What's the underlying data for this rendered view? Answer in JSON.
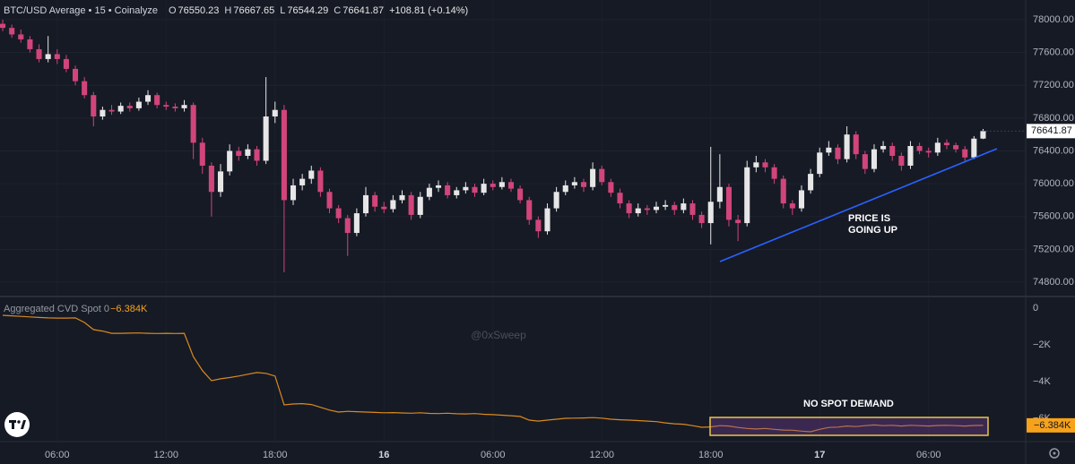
{
  "header": {
    "title": "BTC/USD Average • 15 • Coinalyze",
    "ohlc_labels": [
      "O",
      "H",
      "L",
      "C"
    ],
    "change": "+108.81 (+0.14%)"
  },
  "annotations": {
    "price_line1": "PRICE IS",
    "price_line2": "GOING UP",
    "cvd_note": "NO SPOT DEMAND",
    "watermark": "@0xSweep"
  },
  "chart_data": [
    {
      "type": "candlestick",
      "up_color": "#e6e6e6",
      "down_color": "#d1457b",
      "xlim": [
        -0.3,
        112.3
      ],
      "xticks": [
        {
          "value": 6,
          "label": "06:00"
        },
        {
          "value": 18,
          "label": "12:00"
        },
        {
          "value": 30,
          "label": "18:00"
        },
        {
          "value": 42,
          "label": "16"
        },
        {
          "value": 54,
          "label": "06:00"
        },
        {
          "value": 66,
          "label": "12:00"
        },
        {
          "value": 78,
          "label": "18:00"
        },
        {
          "value": 90,
          "label": "17"
        },
        {
          "value": 102,
          "label": "06:00"
        }
      ],
      "ylim": [
        74636,
        78240
      ],
      "yticks": [
        {
          "value": 78000,
          "label": "78000.00"
        },
        {
          "value": 77600,
          "label": "77600.00"
        },
        {
          "value": 77200,
          "label": "77200.00"
        },
        {
          "value": 76800,
          "label": "76800.00"
        },
        {
          "value": 76400,
          "label": "76400.00"
        },
        {
          "value": 76000,
          "label": "76000.00"
        },
        {
          "value": 75600,
          "label": "75600.00"
        },
        {
          "value": 75200,
          "label": "75200.00"
        },
        {
          "value": 74800,
          "label": "74800.00"
        }
      ],
      "grid": true,
      "ohlc": [
        [
          77950,
          78000,
          77860,
          77900
        ],
        [
          77900,
          77940,
          77780,
          77820
        ],
        [
          77820,
          77880,
          77720,
          77760
        ],
        [
          77760,
          77800,
          77600,
          77640
        ],
        [
          77640,
          77700,
          77480,
          77520
        ],
        [
          77520,
          77800,
          77480,
          77580
        ],
        [
          77580,
          77640,
          77460,
          77520
        ],
        [
          77520,
          77570,
          77360,
          77400
        ],
        [
          77400,
          77440,
          77200,
          77250
        ],
        [
          77250,
          77300,
          77040,
          77080
        ],
        [
          77080,
          77120,
          76700,
          76820
        ],
        [
          76820,
          76940,
          76780,
          76900
        ],
        [
          76900,
          76960,
          76840,
          76880
        ],
        [
          76880,
          76990,
          76850,
          76950
        ],
        [
          76950,
          76990,
          76880,
          76920
        ],
        [
          76920,
          77050,
          76890,
          77000
        ],
        [
          77000,
          77140,
          76960,
          77080
        ],
        [
          77080,
          77110,
          76920,
          76960
        ],
        [
          76960,
          77000,
          76900,
          76940
        ],
        [
          76940,
          76980,
          76880,
          76920
        ],
        [
          76920,
          77020,
          76880,
          76960
        ],
        [
          76960,
          76990,
          76300,
          76500
        ],
        [
          76500,
          76560,
          76120,
          76220
        ],
        [
          76220,
          76260,
          75600,
          75900
        ],
        [
          75900,
          76240,
          75840,
          76150
        ],
        [
          76150,
          76480,
          76100,
          76400
        ],
        [
          76400,
          76450,
          76280,
          76340
        ],
        [
          76340,
          76480,
          76300,
          76420
        ],
        [
          76420,
          76460,
          76220,
          76280
        ],
        [
          76280,
          77300,
          76240,
          76820
        ],
        [
          76820,
          77000,
          76740,
          76900
        ],
        [
          76900,
          76960,
          74920,
          75800
        ],
        [
          75800,
          76060,
          75740,
          75980
        ],
        [
          75980,
          76120,
          75920,
          76060
        ],
        [
          76060,
          76220,
          76000,
          76160
        ],
        [
          76160,
          76200,
          75840,
          75900
        ],
        [
          75900,
          75940,
          75640,
          75700
        ],
        [
          75700,
          75740,
          75520,
          75580
        ],
        [
          75580,
          75620,
          75120,
          75400
        ],
        [
          75400,
          75700,
          75360,
          75640
        ],
        [
          75640,
          75960,
          75600,
          75860
        ],
        [
          75860,
          75900,
          75660,
          75720
        ],
        [
          75720,
          75780,
          75640,
          75690
        ],
        [
          75690,
          75860,
          75650,
          75800
        ],
        [
          75800,
          75920,
          75760,
          75860
        ],
        [
          75860,
          75900,
          75560,
          75620
        ],
        [
          75620,
          75900,
          75580,
          75840
        ],
        [
          75840,
          76000,
          75800,
          75950
        ],
        [
          75950,
          76040,
          75900,
          75980
        ],
        [
          75980,
          76020,
          75820,
          75860
        ],
        [
          75860,
          75960,
          75820,
          75920
        ],
        [
          75920,
          76020,
          75880,
          75960
        ],
        [
          75960,
          76000,
          75840,
          75890
        ],
        [
          75890,
          76060,
          75860,
          76000
        ],
        [
          76000,
          76040,
          75920,
          75960
        ],
        [
          75960,
          76080,
          75930,
          76020
        ],
        [
          76020,
          76060,
          75900,
          75940
        ],
        [
          75940,
          75980,
          75760,
          75800
        ],
        [
          75800,
          75840,
          75500,
          75560
        ],
        [
          75560,
          75600,
          75340,
          75420
        ],
        [
          75420,
          75760,
          75380,
          75700
        ],
        [
          75700,
          75960,
          75660,
          75900
        ],
        [
          75900,
          76040,
          75860,
          75980
        ],
        [
          75980,
          76080,
          75940,
          76020
        ],
        [
          76020,
          76060,
          75900,
          75960
        ],
        [
          75960,
          76260,
          75920,
          76180
        ],
        [
          76180,
          76220,
          75980,
          76020
        ],
        [
          76020,
          76060,
          75840,
          75890
        ],
        [
          75890,
          75940,
          75700,
          75760
        ],
        [
          75760,
          75800,
          75580,
          75640
        ],
        [
          75640,
          75760,
          75600,
          75700
        ],
        [
          75700,
          75740,
          75620,
          75680
        ],
        [
          75680,
          75780,
          75640,
          75720
        ],
        [
          75720,
          75800,
          75680,
          75740
        ],
        [
          75740,
          75780,
          75620,
          75680
        ],
        [
          75680,
          75820,
          75640,
          75760
        ],
        [
          75760,
          75800,
          75560,
          75620
        ],
        [
          75620,
          75660,
          75460,
          75520
        ],
        [
          75520,
          76450,
          75260,
          75780
        ],
        [
          75780,
          76360,
          75700,
          75960
        ],
        [
          75960,
          76000,
          75480,
          75560
        ],
        [
          75560,
          75620,
          75300,
          75520
        ],
        [
          75520,
          76280,
          75480,
          76200
        ],
        [
          76200,
          76340,
          76140,
          76260
        ],
        [
          76260,
          76300,
          76140,
          76200
        ],
        [
          76200,
          76240,
          76000,
          76060
        ],
        [
          76060,
          76100,
          75700,
          75760
        ],
        [
          75760,
          75800,
          75620,
          75700
        ],
        [
          75700,
          75980,
          75660,
          75920
        ],
        [
          75920,
          76180,
          75880,
          76120
        ],
        [
          76120,
          76440,
          76080,
          76380
        ],
        [
          76380,
          76520,
          76340,
          76440
        ],
        [
          76440,
          76480,
          76240,
          76300
        ],
        [
          76300,
          76700,
          76260,
          76600
        ],
        [
          76600,
          76640,
          76300,
          76360
        ],
        [
          76360,
          76400,
          76120,
          76180
        ],
        [
          76180,
          76480,
          76140,
          76420
        ],
        [
          76420,
          76520,
          76380,
          76460
        ],
        [
          76460,
          76500,
          76280,
          76340
        ],
        [
          76340,
          76380,
          76160,
          76220
        ],
        [
          76220,
          76520,
          76180,
          76460
        ],
        [
          76460,
          76500,
          76360,
          76400
        ],
        [
          76400,
          76440,
          76320,
          76380
        ],
        [
          76380,
          76560,
          76340,
          76500
        ],
        [
          76500,
          76540,
          76420,
          76470
        ],
        [
          76470,
          76500,
          76380,
          76420
        ],
        [
          76420,
          76460,
          76280,
          76320
        ],
        [
          76320,
          76580,
          76300,
          76550
        ],
        [
          76550.23,
          76667.65,
          76544.29,
          76641.87
        ]
      ]
    },
    {
      "type": "line",
      "name": "Aggregated CVD Spot 0",
      "color": "#d98a1e",
      "last_value_label": "−6.384K",
      "xlim": [
        -0.3,
        112.3
      ],
      "ylim": [
        -7220,
        585
      ],
      "yticks": [
        0,
        {
          "value": -2000,
          "label": "−2K"
        },
        {
          "value": -4000,
          "label": "−4K"
        },
        {
          "value": -6000,
          "label": "−6K"
        }
      ],
      "values": [
        -390,
        -420,
        -450,
        -480,
        -510,
        -530,
        -540,
        -540,
        -530,
        -780,
        -1170,
        -1250,
        -1370,
        -1370,
        -1360,
        -1350,
        -1370,
        -1380,
        -1370,
        -1380,
        -1370,
        -2640,
        -3400,
        -3950,
        -3850,
        -3780,
        -3700,
        -3600,
        -3510,
        -3550,
        -3700,
        -5270,
        -5220,
        -5200,
        -5250,
        -5400,
        -5550,
        -5660,
        -5620,
        -5640,
        -5660,
        -5680,
        -5700,
        -5690,
        -5710,
        -5720,
        -5700,
        -5730,
        -5740,
        -5720,
        -5750,
        -5760,
        -5740,
        -5780,
        -5800,
        -5830,
        -5860,
        -5900,
        -6100,
        -6150,
        -6100,
        -6050,
        -6000,
        -5990,
        -5980,
        -5960,
        -5990,
        -6050,
        -6080,
        -6100,
        -6120,
        -6150,
        -6180,
        -6250,
        -6300,
        -6320,
        -6400,
        -6490,
        -6470,
        -6400,
        -6420,
        -6500,
        -6550,
        -6580,
        -6550,
        -6600,
        -6640,
        -6650,
        -6700,
        -6730,
        -6600,
        -6500,
        -6480,
        -6420,
        -6450,
        -6400,
        -6360,
        -6400,
        -6380,
        -6420,
        -6380,
        -6400,
        -6420,
        -6390,
        -6380,
        -6400,
        -6420,
        -6390,
        -6384
      ]
    }
  ]
}
